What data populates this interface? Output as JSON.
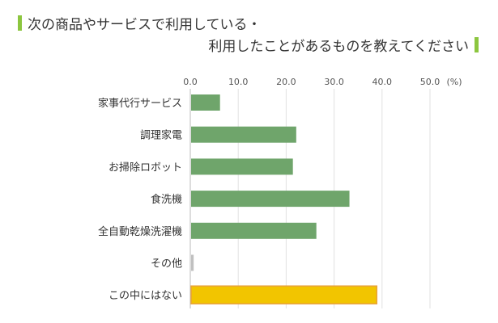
{
  "title_line1": "次の商品やサービスで利用している・",
  "title_line2": "利用したことがあるものを教えてください",
  "accent_color": "#8cc63f",
  "chart_data": {
    "type": "bar",
    "orientation": "horizontal",
    "title": "次の商品やサービスで利用している・利用したことがあるものを教えてください",
    "categories": [
      "家事代行サービス",
      "調理家電",
      "お掃除ロボット",
      "食洗機",
      "全自動乾燥洗濯機",
      "その他",
      "この中にはない"
    ],
    "values": [
      6.2,
      22.1,
      21.4,
      33.2,
      26.3,
      0.7,
      38.9
    ],
    "colors": [
      "#6fa56b",
      "#6fa56b",
      "#6fa56b",
      "#6fa56b",
      "#6fa56b",
      "#c0c0c0",
      "#f2c500"
    ],
    "xlim": [
      0,
      50
    ],
    "ticks": [
      "0.0",
      "10.0",
      "20.0",
      "30.0",
      "40.0",
      "50.0"
    ],
    "unit_label": "(%)",
    "grid": true
  }
}
